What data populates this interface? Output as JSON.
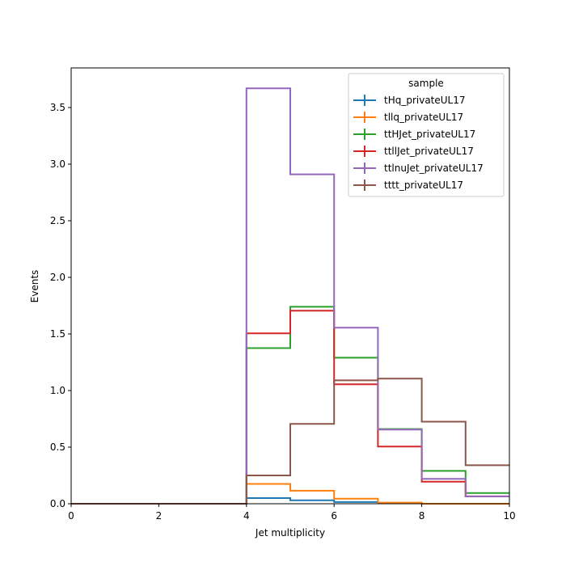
{
  "chart_data": {
    "type": "histogram-step",
    "xlabel": "Jet multiplicity",
    "ylabel": "Events",
    "xlim": [
      0,
      10
    ],
    "ylim": [
      0,
      3.85
    ],
    "xticks": [
      "0",
      "2",
      "4",
      "6",
      "8",
      "10"
    ],
    "yticks": [
      "0.0",
      "0.5",
      "1.0",
      "1.5",
      "2.0",
      "2.5",
      "3.0",
      "3.5"
    ],
    "grid": false,
    "legend": {
      "title": "sample",
      "placement": "top-right"
    },
    "bin_edges": [
      0,
      1,
      2,
      3,
      4,
      5,
      6,
      7,
      8,
      9,
      10
    ],
    "series": [
      {
        "name": "tHq_privateUL17",
        "color": "#1f77b4",
        "values": [
          0,
          0,
          0,
          0,
          0.05,
          0.03,
          0.015,
          0.005,
          0.0,
          0.0
        ]
      },
      {
        "name": "tllq_privateUL17",
        "color": "#ff7f0e",
        "values": [
          0,
          0,
          0,
          0,
          0.175,
          0.115,
          0.045,
          0.01,
          0.0,
          0.0
        ]
      },
      {
        "name": "ttHJet_privateUL17",
        "color": "#2ca02c",
        "values": [
          0,
          0,
          0,
          0,
          1.375,
          1.74,
          1.29,
          0.66,
          0.29,
          0.095
        ]
      },
      {
        "name": "ttllJet_privateUL17",
        "color": "#d62728",
        "values": [
          0,
          0,
          0,
          0,
          1.505,
          1.705,
          1.055,
          0.505,
          0.195,
          0.065
        ]
      },
      {
        "name": "ttlnuJet_privateUL17",
        "color": "#9467bd",
        "values": [
          0,
          0,
          0,
          0,
          3.67,
          2.91,
          1.555,
          0.655,
          0.22,
          0.065
        ]
      },
      {
        "name": "tttt_privateUL17",
        "color": "#8c564b",
        "values": [
          0,
          0,
          0,
          0,
          0.25,
          0.705,
          1.09,
          1.105,
          0.725,
          0.34
        ]
      }
    ]
  }
}
